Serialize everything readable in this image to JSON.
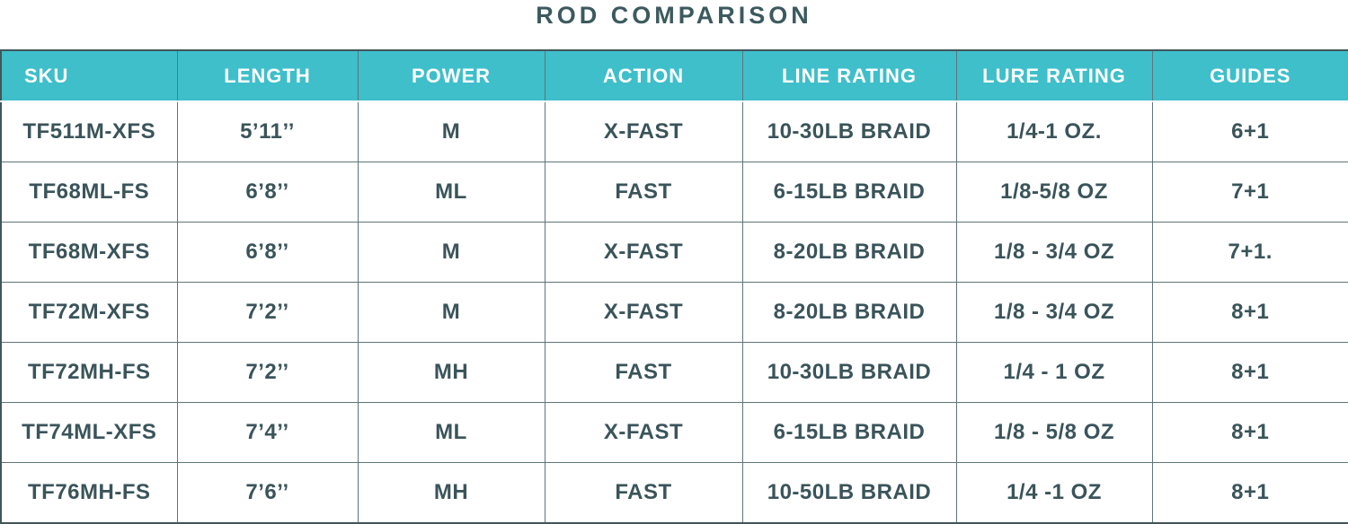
{
  "title": "ROD COMPARISON",
  "colors": {
    "header_bg": "#3EBFCA",
    "header_text": "#FFFFFF",
    "body_text": "#3A545A",
    "title_text": "#3C5A5E",
    "border": "#5E7579",
    "outer_border": "#42555A"
  },
  "chart_data": {
    "type": "table",
    "title": "ROD COMPARISON",
    "columns": [
      "SKU",
      "LENGTH",
      "POWER",
      "ACTION",
      "LINE RATING",
      "LURE RATING",
      "GUIDES"
    ],
    "rows": [
      [
        "TF511M-XFS",
        "5’11’’",
        "M",
        "X-FAST",
        "10-30LB BRAID",
        "1/4-1 OZ.",
        "6+1"
      ],
      [
        "TF68ML-FS",
        "6’8’’",
        "ML",
        "FAST",
        "6-15LB BRAID",
        "1/8-5/8 OZ",
        "7+1"
      ],
      [
        "TF68M-XFS",
        "6’8’’",
        "M",
        "X-FAST",
        "8-20LB BRAID",
        "1/8 - 3/4 OZ",
        "7+1."
      ],
      [
        "TF72M-XFS",
        "7’2’’",
        "M",
        "X-FAST",
        "8-20LB BRAID",
        "1/8 - 3/4 OZ",
        "8+1"
      ],
      [
        "TF72MH-FS",
        "7’2’’",
        "MH",
        "FAST",
        "10-30LB BRAID",
        "1/4 - 1 OZ",
        "8+1"
      ],
      [
        "TF74ML-XFS",
        "7’4’’",
        "ML",
        "X-FAST",
        "6-15LB BRAID",
        "1/8 - 5/8 OZ",
        "8+1"
      ],
      [
        "TF76MH-FS",
        "7’6’’",
        "MH",
        "FAST",
        "10-50LB BRAID",
        "1/4 -1 OZ",
        "8+1"
      ]
    ]
  }
}
